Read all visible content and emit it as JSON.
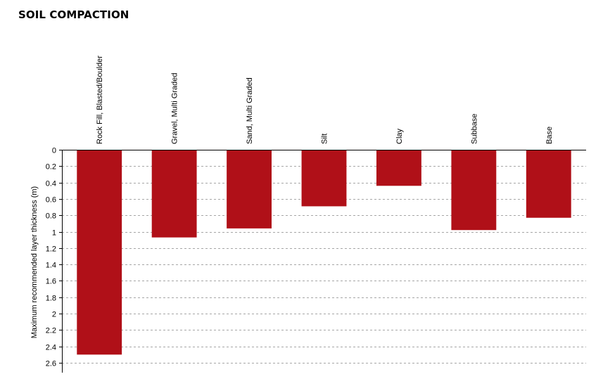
{
  "chart_data": {
    "type": "bar",
    "title": "SOIL COMPACTION",
    "ylabel": "Maximum recommended layer thickness (m)",
    "xlabel": "",
    "y_axis_inverted": true,
    "category_axis_position": "top",
    "label_orientation": "vertical",
    "ylim": [
      0,
      2.6
    ],
    "yticks": [
      "0",
      "0.2",
      "0.4",
      "0.6",
      "0.8",
      "1",
      "1.2",
      "1.4",
      "1.6",
      "1.8",
      "2",
      "2.2",
      "2.4",
      "2.6"
    ],
    "grid": true,
    "legend": "none",
    "bar_color": "#b01018",
    "categories": [
      "Rock Fill, Blasted/Boulder",
      "Gravel, Multi Graded",
      "Sand, Multi Graded",
      "Silt",
      "Clay",
      "Subbase",
      "Base"
    ],
    "values": [
      2.5,
      1.07,
      0.96,
      0.69,
      0.44,
      0.98,
      0.83
    ]
  }
}
